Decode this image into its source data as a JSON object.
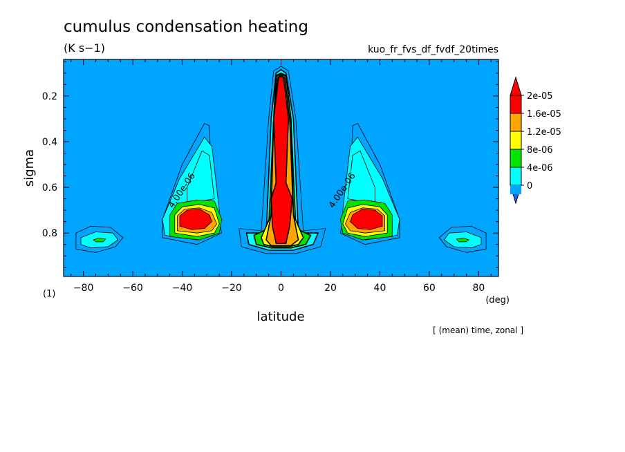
{
  "chart_data": {
    "type": "heatmap",
    "title": "cumulus condensation heating",
    "units": "(K s−1)",
    "experiment": "kuo_fr_fvs_df_fvdf_20times",
    "xlabel": "latitude",
    "x_unit": "(deg)",
    "ylabel": "sigma",
    "panel_label": "(1)",
    "footer": "[ (mean) time, zonal ]",
    "xlim": [
      -88,
      88
    ],
    "ylim": [
      0.99,
      0.04
    ],
    "y_inverted": true,
    "x_ticks": [
      -80,
      -60,
      -40,
      -20,
      0,
      20,
      40,
      60,
      80
    ],
    "x_tick_labels": [
      "−80",
      "−60",
      "−40",
      "−20",
      "0",
      "20",
      "40",
      "60",
      "80"
    ],
    "y_ticks": [
      0.2,
      0.4,
      0.6,
      0.8
    ],
    "y_tick_labels": [
      "0.2",
      "0.4",
      "0.6",
      "0.8"
    ],
    "levels": [
      0,
      4e-06,
      8e-06,
      1.2e-05,
      1.6e-05,
      2e-05
    ],
    "colorbar_labels": [
      "0",
      "4e-06",
      "8e-06",
      "1.2e-05",
      "1.6e-05",
      "2e-05"
    ],
    "colorbar_colors": [
      "#00a5ff",
      "#00ffff",
      "#00e400",
      "#ffff00",
      "#ffa500",
      "#ff0000"
    ],
    "colorbar_under_color": "#1e64ff",
    "contour_labels": [
      "4.00e-06",
      "4.00e-06"
    ],
    "regions": [
      {
        "name": "equatorial maximum",
        "lat": [
          -8,
          8
        ],
        "sigma": [
          0.08,
          0.86
        ],
        "peak_value": 2e-05
      },
      {
        "name": "southern midlatitude maximum",
        "lat": [
          -44,
          -24
        ],
        "sigma": [
          0.38,
          0.82
        ],
        "peak_value": 2e-05
      },
      {
        "name": "northern midlatitude maximum",
        "lat": [
          24,
          48
        ],
        "sigma": [
          0.38,
          0.82
        ],
        "peak_value": 2e-05
      },
      {
        "name": "southern polar cell",
        "lat": [
          -80,
          -66
        ],
        "sigma": [
          0.79,
          0.88
        ],
        "peak_value": 8e-06
      },
      {
        "name": "northern polar cell",
        "lat": [
          66,
          82
        ],
        "sigma": [
          0.79,
          0.88
        ],
        "peak_value": 8e-06
      }
    ]
  }
}
